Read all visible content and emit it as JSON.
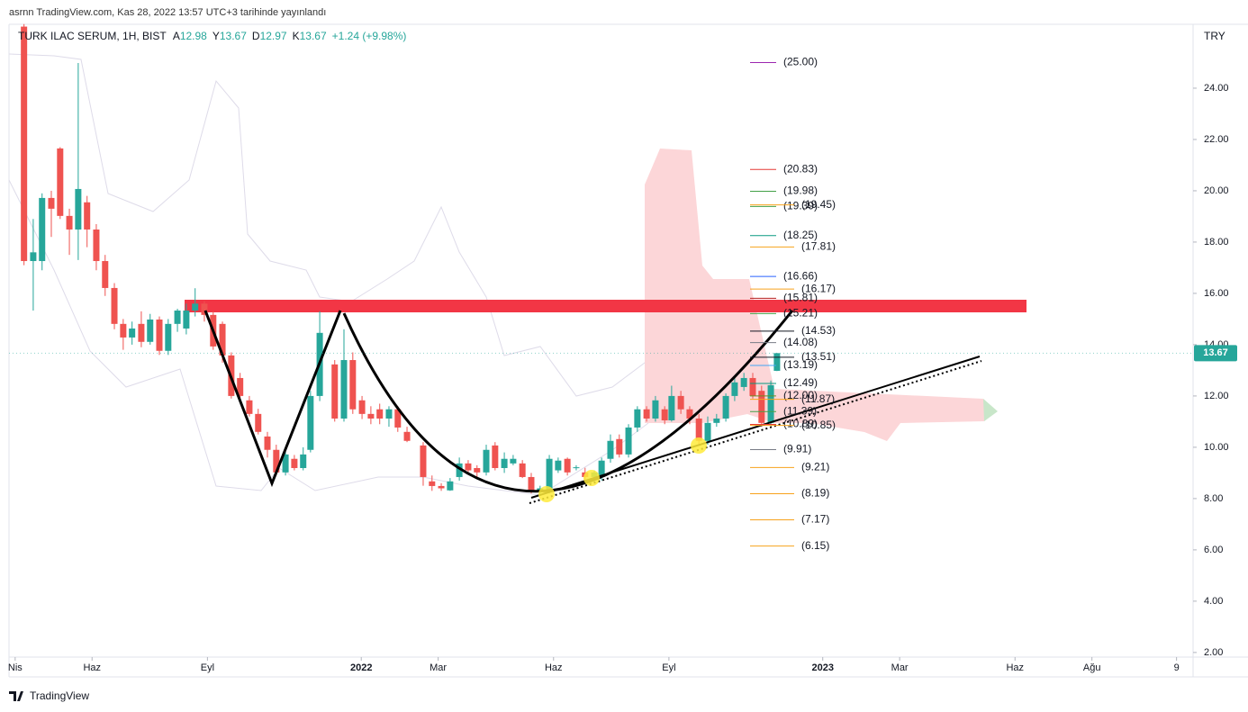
{
  "published": "asrnn TradingView.com, Kas 28, 2022 13:57 UTC+3 tarihinde yayınlandı",
  "footer": "TradingView",
  "chart_data": {
    "type": "candlestick",
    "symbol": "TURK ILAC SERUM, 1H, BIST",
    "ohlc_keys": [
      "A",
      "Y",
      "D",
      "K"
    ],
    "change": "+1.24 (+9.98%)",
    "unit": "TRY",
    "up_color": "#26a69a",
    "down_color": "#ef5350",
    "x": [
      0.23,
      0.47,
      0.7,
      0.94,
      1.17,
      1.41,
      1.64,
      1.87,
      2.11,
      2.34,
      2.58,
      2.81,
      3.04,
      3.28,
      3.51,
      3.75,
      3.98,
      4.22,
      4.45,
      4.68,
      4.92,
      5.15,
      5.39,
      5.62,
      5.85,
      6.09,
      6.32,
      6.56,
      6.79,
      7.03,
      7.26,
      7.49,
      7.68,
      7.92,
      8.31,
      8.55,
      8.78,
      9.02,
      9.25,
      9.48,
      9.72,
      9.95,
      10.19,
      10.61,
      10.84,
      11.08,
      11.31,
      11.55,
      11.78,
      12.01,
      12.25,
      12.48,
      12.72,
      12.95,
      13.19,
      13.42,
      13.65,
      13.89,
      14.12,
      14.36,
      14.59,
      14.82,
      15.06,
      15.25,
      15.48,
      15.71,
      15.95,
      16.18,
      16.42,
      16.65,
      16.89,
      17.07,
      17.31,
      17.54,
      17.78,
      18.01,
      18.24,
      18.48,
      18.71,
      18.95,
      19.18,
      19.41,
      19.65,
      19.81
    ],
    "open": [
      26.4,
      17.26,
      17.26,
      19.72,
      21.65,
      19.02,
      18.49,
      19.55,
      18.49,
      17.26,
      16.21,
      14.81,
      14.28,
      14.81,
      14.11,
      14.98,
      13.76,
      14.81,
      14.63,
      15.33,
      15.6,
      15.16,
      14.81,
      13.58,
      12.7,
      11.83,
      11.3,
      10.42,
      9.9,
      9.02,
      9.55,
      9.19,
      9.9,
      12.0,
      13.23,
      11.12,
      13.4,
      11.83,
      11.3,
      11.48,
      11.12,
      11.48,
      10.6,
      10.07,
      8.67,
      8.49,
      8.32,
      8.84,
      9.37,
      9.19,
      9.02,
      10.07,
      9.19,
      9.37,
      9.37,
      8.84,
      8.32,
      8.32,
      9.1,
      9.55,
      9.19,
      9.02,
      8.84,
      8.84,
      9.55,
      10.32,
      9.72,
      10.77,
      11.48,
      11.12,
      11.48,
      11.05,
      12.0,
      11.48,
      11.12,
      10.25,
      10.95,
      11.12,
      12.0,
      12.35,
      12.7,
      12.2,
      10.95,
      12.98
    ],
    "high": [
      26.5,
      18.9,
      19.9,
      20.0,
      21.7,
      19.3,
      24.98,
      19.8,
      18.7,
      17.5,
      16.4,
      15.0,
      14.9,
      15.3,
      15.2,
      15.1,
      15.0,
      15.4,
      15.6,
      16.2,
      15.7,
      15.3,
      14.9,
      13.7,
      12.9,
      12.0,
      11.5,
      10.6,
      10.1,
      9.9,
      9.7,
      10.0,
      12.2,
      15.3,
      13.4,
      14.6,
      13.7,
      12.0,
      11.6,
      11.7,
      11.6,
      11.6,
      10.8,
      10.2,
      8.9,
      8.6,
      8.8,
      9.6,
      9.5,
      9.3,
      10.1,
      10.2,
      9.8,
      9.7,
      9.5,
      9.0,
      8.5,
      9.7,
      9.6,
      9.6,
      9.3,
      9.2,
      9.1,
      9.6,
      10.5,
      10.5,
      10.9,
      11.6,
      11.6,
      12.0,
      11.6,
      12.4,
      12.2,
      11.6,
      11.3,
      11.2,
      11.3,
      12.1,
      12.8,
      12.9,
      12.9,
      12.4,
      12.6,
      13.67
    ],
    "low": [
      17.1,
      15.33,
      16.9,
      18.2,
      18.9,
      17.5,
      17.3,
      17.8,
      16.9,
      15.9,
      14.6,
      13.8,
      14.0,
      13.9,
      14.0,
      13.6,
      13.6,
      14.5,
      14.4,
      15.1,
      14.9,
      13.8,
      13.3,
      11.9,
      11.8,
      11.2,
      10.5,
      9.6,
      8.9,
      8.9,
      9.1,
      9.1,
      9.8,
      11.8,
      11.0,
      11.0,
      11.3,
      11.1,
      10.9,
      10.9,
      10.8,
      10.6,
      10.2,
      8.5,
      8.3,
      8.3,
      8.3,
      8.7,
      9.0,
      8.8,
      8.9,
      9.1,
      9.0,
      9.3,
      8.8,
      8.2,
      8.1,
      8.2,
      9.0,
      8.9,
      9.1,
      8.6,
      8.6,
      8.7,
      9.4,
      9.6,
      9.6,
      10.6,
      11.0,
      11.0,
      10.9,
      11.0,
      11.3,
      10.9,
      10.1,
      10.1,
      10.8,
      11.0,
      11.8,
      12.2,
      11.9,
      10.8,
      10.9,
      12.97
    ],
    "close": [
      17.26,
      17.6,
      19.72,
      19.3,
      19.02,
      18.49,
      20.07,
      18.49,
      17.26,
      16.21,
      14.81,
      14.28,
      14.63,
      14.11,
      14.98,
      13.76,
      14.81,
      15.33,
      15.33,
      15.6,
      15.16,
      13.93,
      13.58,
      12.0,
      12.0,
      11.3,
      10.6,
      9.9,
      9.02,
      9.72,
      9.19,
      9.72,
      12.0,
      14.46,
      11.12,
      13.4,
      11.48,
      11.3,
      11.12,
      11.12,
      11.48,
      10.77,
      10.25,
      8.84,
      8.49,
      8.4,
      8.67,
      9.37,
      9.1,
      9.02,
      9.9,
      9.19,
      9.55,
      9.55,
      8.84,
      8.32,
      8.4,
      9.55,
      9.48,
      9.02,
      9.22,
      8.84,
      9.02,
      9.48,
      10.25,
      9.72,
      10.77,
      11.48,
      11.12,
      11.83,
      11.05,
      12.0,
      11.48,
      11.12,
      10.25,
      10.95,
      11.12,
      12.0,
      12.53,
      12.7,
      12.0,
      10.95,
      12.42,
      13.67
    ],
    "xlim": [
      -0.16,
      30.63
    ],
    "xticks": [
      {
        "value": 0,
        "label": "Nis"
      },
      {
        "value": 2,
        "label": "Haz"
      },
      {
        "value": 5,
        "label": "Eyl"
      },
      {
        "value": 9,
        "label": "2022"
      },
      {
        "value": 11,
        "label": "Mar"
      },
      {
        "value": 14,
        "label": "Haz"
      },
      {
        "value": 17,
        "label": "Eyl"
      },
      {
        "value": 21,
        "label": "2023"
      },
      {
        "value": 23,
        "label": "Mar"
      },
      {
        "value": 26,
        "label": "Haz"
      },
      {
        "value": 28,
        "label": "Ağu"
      },
      {
        "value": 30.2,
        "label": "9"
      }
    ],
    "ylim": [
      1.82,
      26.49
    ],
    "yticks": [
      {
        "value": 2,
        "label": "2.00"
      },
      {
        "value": 4,
        "label": "4.00"
      },
      {
        "value": 6,
        "label": "6.00"
      },
      {
        "value": 8,
        "label": "8.00"
      },
      {
        "value": 10,
        "label": "10.00"
      },
      {
        "value": 12,
        "label": "12.00"
      },
      {
        "value": 14,
        "label": "14.00"
      },
      {
        "value": 16,
        "label": "16.00"
      },
      {
        "value": 18,
        "label": "18.00"
      },
      {
        "value": 20,
        "label": "20.00"
      },
      {
        "value": 22,
        "label": "22.00"
      },
      {
        "value": 24,
        "label": "24.00"
      }
    ],
    "levels": [
      {
        "value": 25,
        "label": "(25.00)",
        "color": "#9c27b0"
      },
      {
        "value": 20.83,
        "label": "(20.83)",
        "color": "#e53935"
      },
      {
        "value": 19.98,
        "label": "(19.98)",
        "color": "#43a047"
      },
      {
        "value": 19.39,
        "label": "(19.39)",
        "color": "#43a047"
      },
      {
        "value": 19.45,
        "label": "(19.45)",
        "color": "#f7a21b"
      },
      {
        "value": 18.25,
        "label": "(18.25)",
        "color": "#089981"
      },
      {
        "value": 17.81,
        "label": "(17.81)",
        "color": "#f7a21b"
      },
      {
        "value": 16.66,
        "label": "(16.66)",
        "color": "#2962ff"
      },
      {
        "value": 16.17,
        "label": "(16.17)",
        "color": "#f7a21b"
      },
      {
        "value": 15.81,
        "label": "(15.81)",
        "color": "#b71c1c"
      },
      {
        "value": 15.21,
        "label": "(15.21)",
        "color": "#43a047"
      },
      {
        "value": 14.53,
        "label": "(14.53)",
        "color": "#131722"
      },
      {
        "value": 14.08,
        "label": "(14.08)",
        "color": "#787b86"
      },
      {
        "value": 13.51,
        "label": "(13.51)",
        "color": "#131722"
      },
      {
        "value": 13.19,
        "label": "(13.19)",
        "color": "#42a5f5"
      },
      {
        "value": 12.49,
        "label": "(12.49)",
        "color": "#089981"
      },
      {
        "value": 12.0,
        "label": "(12.00)",
        "color": "#6b8e23"
      },
      {
        "value": 11.87,
        "label": "(11.87)",
        "color": "#f7a21b"
      },
      {
        "value": 11.39,
        "label": "(11.39)",
        "color": "#43a047"
      },
      {
        "value": 10.89,
        "label": "(10.89)",
        "color": "#e53935"
      },
      {
        "value": 10.85,
        "label": "(10.85)",
        "color": "#f7a21b"
      },
      {
        "value": 9.91,
        "label": "(9.91)",
        "color": "#787b86"
      },
      {
        "value": 9.21,
        "label": "(9.21)",
        "color": "#f7a21b"
      },
      {
        "value": 8.19,
        "label": "(8.19)",
        "color": "#f7a21b"
      },
      {
        "value": 7.17,
        "label": "(7.17)",
        "color": "#f7a21b"
      },
      {
        "value": 6.15,
        "label": "(6.15)",
        "color": "#f7a21b"
      }
    ]
  }
}
